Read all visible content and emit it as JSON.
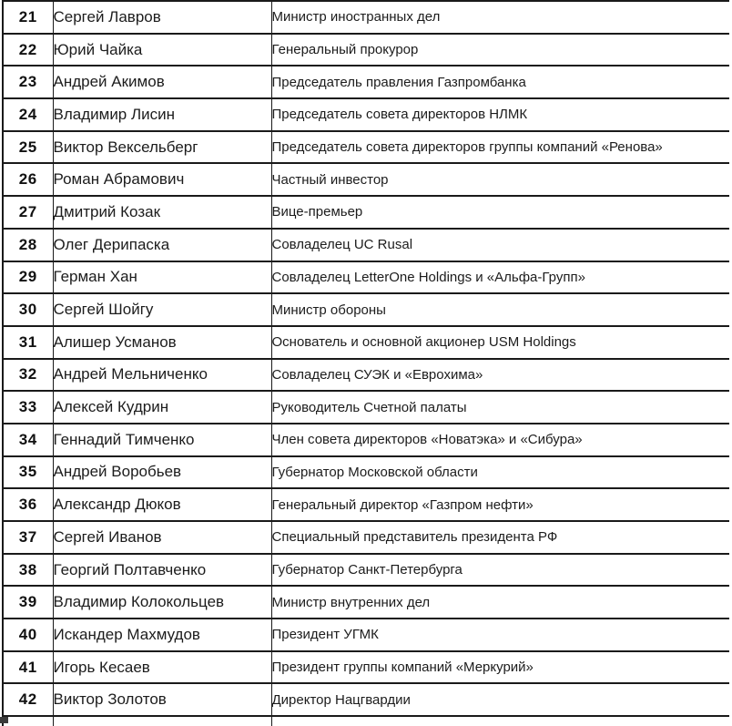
{
  "table": {
    "description_colors": {
      "border": "#1a1a1a",
      "text": "#1c1c1c",
      "background": "#ffffff"
    },
    "rows": [
      {
        "rank": "21",
        "name": "Сергей Лавров",
        "position": "Министр иностранных дел"
      },
      {
        "rank": "22",
        "name": "Юрий Чайка",
        "position": "Генеральный прокурор"
      },
      {
        "rank": "23",
        "name": "Андрей Акимов",
        "position": "Председатель правления Газпромбанка"
      },
      {
        "rank": "24",
        "name": "Владимир Лисин",
        "position": "Председатель совета директоров НЛМК"
      },
      {
        "rank": "25",
        "name": "Виктор Вексельберг",
        "position": "Председатель совета директоров группы компаний «Ренова»"
      },
      {
        "rank": "26",
        "name": "Роман Абрамович",
        "position": "Частный инвестор"
      },
      {
        "rank": "27",
        "name": "Дмитрий Козак",
        "position": "Вице-премьер"
      },
      {
        "rank": "28",
        "name": "Олег Дерипаска",
        "position": "Совладелец UC Rusal"
      },
      {
        "rank": "29",
        "name": "Герман Хан",
        "position": "Совладелец LetterOne Holdings и «Альфа-Групп»"
      },
      {
        "rank": "30",
        "name": "Сергей Шойгу",
        "position": "Министр обороны"
      },
      {
        "rank": "31",
        "name": "Алишер Усманов",
        "position": "Основатель и основной акционер USM Holdings"
      },
      {
        "rank": "32",
        "name": "Андрей Мельниченко",
        "position": "Совладелец СУЭК и «Еврохима»"
      },
      {
        "rank": "33",
        "name": "Алексей Кудрин",
        "position": "Руководитель Счетной палаты"
      },
      {
        "rank": "34",
        "name": "Геннадий Тимченко",
        "position": "Член совета директоров «Новатэка» и «Сибура»"
      },
      {
        "rank": "35",
        "name": "Андрей Воробьев",
        "position": "Губернатор Московской области"
      },
      {
        "rank": "36",
        "name": "Александр Дюков",
        "position": "Генеральный директор «Газпром нефти»"
      },
      {
        "rank": "37",
        "name": "Сергей Иванов",
        "position": "Специальный представитель президента РФ"
      },
      {
        "rank": "38",
        "name": "Георгий Полтавченко",
        "position": "Губернатор Санкт-Петербурга"
      },
      {
        "rank": "39",
        "name": "Владимир Колокольцев",
        "position": "Министр внутренних дел"
      },
      {
        "rank": "40",
        "name": "Искандер Махмудов",
        "position": "Президент УГМК"
      },
      {
        "rank": "41",
        "name": "Игорь Кесаев",
        "position": "Президент группы компаний «Меркурий»"
      },
      {
        "rank": "42",
        "name": "Виктор Золотов",
        "position": "Директор Нацгвардии"
      }
    ]
  }
}
